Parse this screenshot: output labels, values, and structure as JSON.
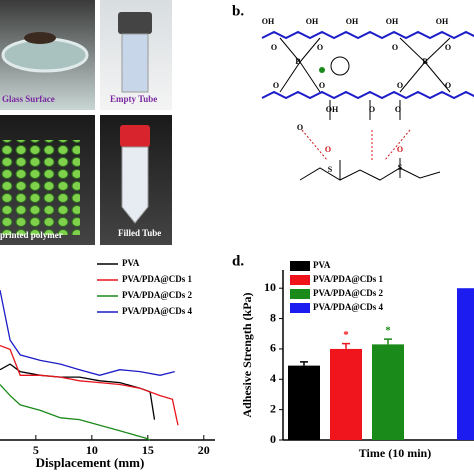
{
  "photos": {
    "labels": [
      "Glass Surface",
      "Empty Tube",
      "printed polymer",
      "Filled Tube"
    ]
  },
  "structure": {
    "panel_label": "b.",
    "labels": [
      "OH",
      "OH",
      "OH",
      "OH",
      "OH",
      "O",
      "O",
      "O",
      "O",
      "B",
      "B",
      "O",
      "O",
      "O",
      "O",
      "OH",
      "O",
      "O",
      "O",
      "S",
      "S",
      "O",
      "O"
    ]
  },
  "chart_data": [
    {
      "type": "line",
      "x_label": "Displacement (mm)",
      "xlim": [
        1.8,
        21
      ],
      "xticks": [
        5,
        10,
        15,
        20
      ],
      "ylim": [
        0,
        1
      ],
      "series": [
        {
          "name": "PVA",
          "color": "#000000",
          "x": [
            1.8,
            2.7,
            3.6,
            5.4,
            7.2,
            8.9,
            10.7,
            12.5,
            14.3,
            15.2,
            15.6
          ],
          "values": [
            0.38,
            0.41,
            0.37,
            0.35,
            0.34,
            0.34,
            0.32,
            0.31,
            0.28,
            0.26,
            0.11
          ]
        },
        {
          "name": "PVA/PDA@CDs 1",
          "color": "#e8141c",
          "x": [
            1.8,
            2.7,
            3.6,
            5.4,
            7.2,
            8.9,
            10.7,
            12.5,
            14.3,
            16.1,
            17.2,
            17.7
          ],
          "values": [
            0.51,
            0.49,
            0.35,
            0.35,
            0.34,
            0.32,
            0.31,
            0.3,
            0.28,
            0.24,
            0.22,
            0.08
          ]
        },
        {
          "name": "PVA/PDA@CDs 2",
          "color": "#1a8a1a",
          "x": [
            1.8,
            2.7,
            3.6,
            5.4,
            7.2,
            8.9,
            10.7,
            12.5,
            14.8,
            15.2
          ],
          "values": [
            0.3,
            0.24,
            0.19,
            0.16,
            0.12,
            0.11,
            0.08,
            0.05,
            0.01,
            0
          ]
        },
        {
          "name": "PVA/PDA@CDs 4",
          "color": "#1c1cc8",
          "x": [
            1.8,
            2.7,
            3.6,
            5.4,
            7.2,
            8.9,
            10.7,
            12.5,
            14.3,
            16.1,
            17.4
          ],
          "values": [
            0.81,
            0.54,
            0.46,
            0.43,
            0.41,
            0.38,
            0.35,
            0.38,
            0.37,
            0.35,
            0.37
          ]
        }
      ]
    },
    {
      "type": "bar",
      "panel_label": "d.",
      "x_label": "Time (10 min)",
      "y_label": "Adhesive Strength (kPa)",
      "categories": [
        "PVA",
        "PVA/PDA@CDs 1",
        "PVA/PDA@CDs 2",
        "PVA/PDA@CDs 4"
      ],
      "colors": [
        "#000000",
        "#f0141c",
        "#1a8a1a",
        "#1c1cf0"
      ],
      "values": [
        4.9,
        6.0,
        6.3,
        10
      ],
      "errors": [
        0.25,
        0.35,
        0.35,
        null
      ],
      "significance": [
        null,
        "*",
        "*",
        null
      ],
      "ylim": [
        0,
        11.2
      ],
      "yticks": [
        0,
        2,
        4,
        6,
        8,
        10
      ]
    }
  ]
}
